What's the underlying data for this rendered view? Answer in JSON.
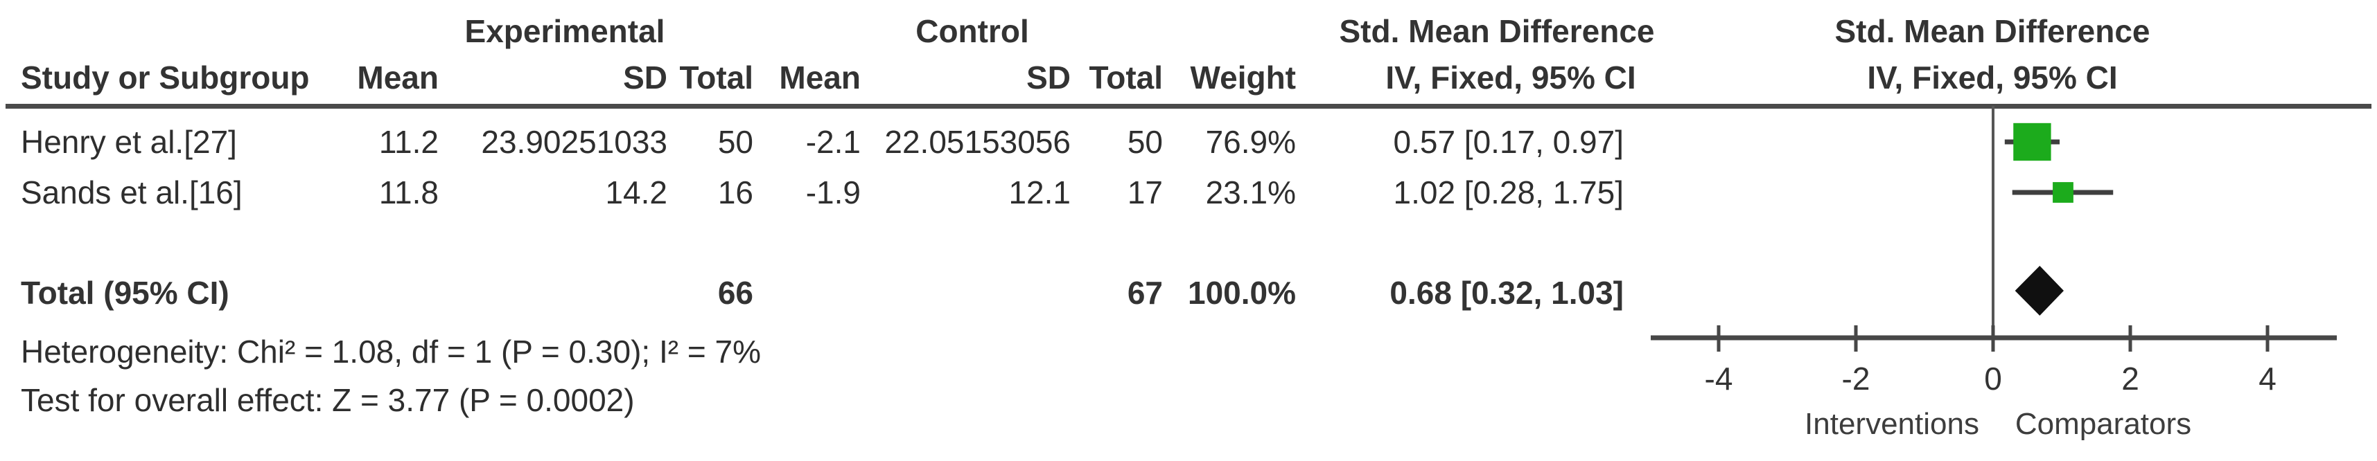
{
  "table": {
    "group_headers": {
      "experimental": "Experimental",
      "control": "Control",
      "smd_col": "Std. Mean Difference",
      "smd_plot": "Std. Mean Difference"
    },
    "col_headers": {
      "study": "Study or Subgroup",
      "mean_e": "Mean",
      "sd_e": "SD",
      "total_e": "Total",
      "mean_c": "Mean",
      "sd_c": "SD",
      "total_c": "Total",
      "weight": "Weight",
      "ci_col": "IV, Fixed, 95% CI",
      "ci_plot": "IV, Fixed, 95% CI"
    },
    "rows": [
      {
        "study": "Henry et al.[27]",
        "mean_e": "11.2",
        "sd_e": "23.90251033",
        "total_e": "50",
        "mean_c": "-2.1",
        "sd_c": "22.05153056",
        "total_c": "50",
        "weight": "76.9%",
        "ci": "0.57 [0.17, 0.97]"
      },
      {
        "study": "Sands et al.[16]",
        "mean_e": "11.8",
        "sd_e": "14.2",
        "total_e": "16",
        "mean_c": "-1.9",
        "sd_c": "12.1",
        "total_c": "17",
        "weight": "23.1%",
        "ci": "1.02 [0.28, 1.75]"
      }
    ],
    "total_row": {
      "label": "Total (95% CI)",
      "total_e": "66",
      "total_c": "67",
      "weight": "100.0%",
      "ci": "0.68 [0.32, 1.03]"
    },
    "footer": {
      "heterogeneity": "Heterogeneity: Chi² = 1.08, df = 1 (P = 0.30); I² = 7%",
      "overall": "Test for overall effect: Z = 3.77 (P = 0.0002)"
    }
  },
  "chart_data": {
    "type": "forest",
    "title": "Std. Mean Difference, IV, Fixed, 95% CI",
    "studies": [
      {
        "name": "Henry et al.[27]",
        "smd": 0.57,
        "ci_low": 0.17,
        "ci_high": 0.97,
        "weight_pct": 76.9
      },
      {
        "name": "Sands et al.[16]",
        "smd": 1.02,
        "ci_low": 0.28,
        "ci_high": 1.75,
        "weight_pct": 23.1
      }
    ],
    "overall": {
      "smd": 0.68,
      "ci_low": 0.32,
      "ci_high": 1.03,
      "total_e": 66,
      "total_c": 67,
      "weight_pct": 100.0
    },
    "heterogeneity": {
      "chi2": 1.08,
      "df": 1,
      "p": "0.30",
      "i2_pct": 7
    },
    "overall_effect": {
      "z": 3.77,
      "p": "0.0002"
    },
    "axis": {
      "ticks": [
        -4,
        -2,
        0,
        2,
        4
      ],
      "range": [
        -5,
        5
      ],
      "tick_labels": [
        "-4",
        "-2",
        "0",
        "2",
        "4"
      ]
    },
    "xlabel_left": "Interventions",
    "xlabel_right": "Comparators",
    "marker_color": "#1cab1c",
    "diamond_color": "#101010"
  }
}
